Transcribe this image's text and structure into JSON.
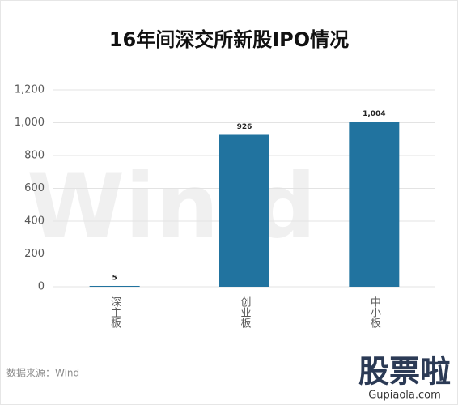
{
  "chart_data": {
    "type": "bar",
    "title": "16年间深交所新股IPO情况",
    "categories": [
      "深主板",
      "创业板",
      "中小板"
    ],
    "values": [
      5,
      926,
      1004
    ],
    "value_labels": [
      "5",
      "926",
      "1,004"
    ],
    "color": "#21739f",
    "ylim": [
      0,
      1200
    ],
    "yticks": [
      0,
      200,
      400,
      600,
      800,
      {
        "value": 1000,
        "label": "1,000"
      },
      {
        "value": 1200,
        "label": "1,200"
      }
    ],
    "grid": true,
    "source": "数据来源：Wind",
    "watermark": "Win.d",
    "logo": "股票啦",
    "logo_url": "Gupiaola.com"
  }
}
